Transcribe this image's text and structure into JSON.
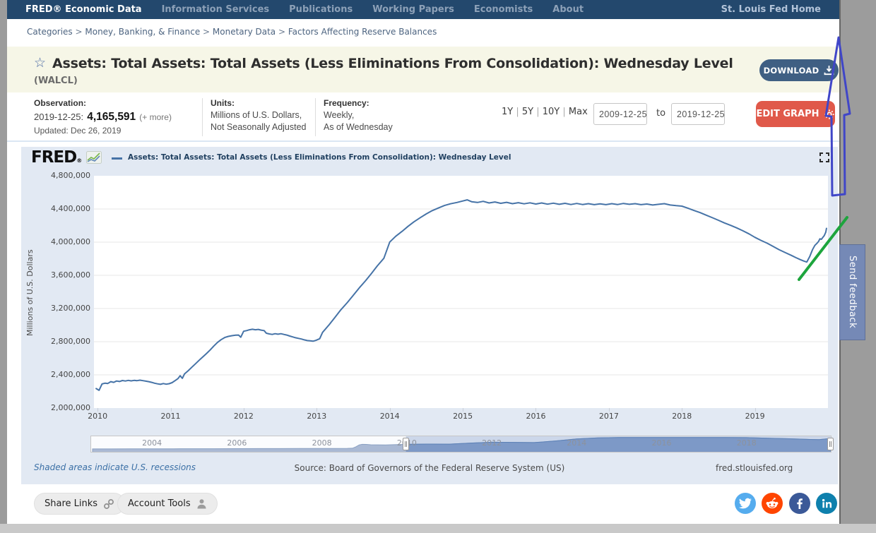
{
  "nav": {
    "brand": "FRED® Economic Data",
    "items": [
      "Information Services",
      "Publications",
      "Working Papers",
      "Economists",
      "About"
    ],
    "right": "St. Louis Fed Home"
  },
  "breadcrumb": {
    "separator": ">",
    "parts": [
      "Categories",
      "Money, Banking, & Finance",
      "Monetary Data",
      "Factors Affecting Reserve Balances"
    ]
  },
  "icons": {
    "favorite_star": "☆"
  },
  "series_header": {
    "title": "Assets: Total Assets: Total Assets (Less Eliminations From Consolidation): Wednesday Level",
    "series_id": "(WALCL)",
    "download_label": "DOWNLOAD"
  },
  "meta": {
    "observation_label": "Observation:",
    "observation_date": "2019-12-25:",
    "observation_value": "4,165,591",
    "more_label": "(+ more)",
    "updated": "Updated: Dec 26, 2019",
    "units_label": "Units:",
    "units_line1": "Millions of U.S. Dollars,",
    "units_line2": "Not Seasonally Adjusted",
    "frequency_label": "Frequency:",
    "frequency_line1": "Weekly,",
    "frequency_line2": "As of Wednesday"
  },
  "range_controls": {
    "presets": [
      "1Y",
      "5Y",
      "10Y",
      "Max"
    ],
    "start_date": "2009-12-25",
    "to_label": "to",
    "end_date": "2019-12-25",
    "edit_graph_label": "EDIT GRAPH"
  },
  "chart": {
    "brand": "FRED",
    "brand_reg": "®",
    "legend": "Assets: Total Assets: Total Assets (Less Eliminations From Consolidation): Wednesday Level"
  },
  "chart_data": {
    "type": "line",
    "title": "Assets: Total Assets: Total Assets (Less Eliminations From Consolidation): Wednesday Level",
    "xlabel": "",
    "ylabel": "Millions of U.S. Dollars",
    "grid": "horizontal",
    "legend_position": "top",
    "xlim": [
      2009.95,
      2020.0
    ],
    "ylim": [
      2000000,
      4800000
    ],
    "y_ticks": [
      2000000,
      2400000,
      2800000,
      3200000,
      3600000,
      4000000,
      4400000,
      4800000
    ],
    "x_ticks": [
      2010,
      2011,
      2012,
      2013,
      2014,
      2015,
      2016,
      2017,
      2018,
      2019
    ],
    "line_color": "#4673a7",
    "last_observation": {
      "date": "2019-12-25",
      "value": 4165591
    },
    "series": [
      {
        "name": "Assets: Total Assets: Total Assets (Less Eliminations From Consolidation): Wednesday Level",
        "points": [
          [
            2009.98,
            2235000
          ],
          [
            2010.02,
            2214000
          ],
          [
            2010.06,
            2290000
          ],
          [
            2010.1,
            2300000
          ],
          [
            2010.14,
            2296000
          ],
          [
            2010.18,
            2318000
          ],
          [
            2010.22,
            2310000
          ],
          [
            2010.26,
            2326000
          ],
          [
            2010.3,
            2320000
          ],
          [
            2010.34,
            2332000
          ],
          [
            2010.38,
            2326000
          ],
          [
            2010.42,
            2334000
          ],
          [
            2010.46,
            2328000
          ],
          [
            2010.5,
            2334000
          ],
          [
            2010.54,
            2330000
          ],
          [
            2010.58,
            2336000
          ],
          [
            2010.62,
            2330000
          ],
          [
            2010.66,
            2324000
          ],
          [
            2010.7,
            2318000
          ],
          [
            2010.74,
            2310000
          ],
          [
            2010.78,
            2300000
          ],
          [
            2010.82,
            2292000
          ],
          [
            2010.86,
            2286000
          ],
          [
            2010.9,
            2295000
          ],
          [
            2010.94,
            2288000
          ],
          [
            2010.98,
            2294000
          ],
          [
            2011.02,
            2306000
          ],
          [
            2011.06,
            2330000
          ],
          [
            2011.1,
            2355000
          ],
          [
            2011.13,
            2390000
          ],
          [
            2011.16,
            2358000
          ],
          [
            2011.19,
            2412000
          ],
          [
            2011.24,
            2450000
          ],
          [
            2011.29,
            2492000
          ],
          [
            2011.34,
            2534000
          ],
          [
            2011.39,
            2576000
          ],
          [
            2011.44,
            2616000
          ],
          [
            2011.49,
            2656000
          ],
          [
            2011.54,
            2700000
          ],
          [
            2011.59,
            2746000
          ],
          [
            2011.64,
            2790000
          ],
          [
            2011.69,
            2824000
          ],
          [
            2011.74,
            2850000
          ],
          [
            2011.79,
            2864000
          ],
          [
            2011.84,
            2872000
          ],
          [
            2011.89,
            2878000
          ],
          [
            2011.93,
            2880000
          ],
          [
            2011.96,
            2854000
          ],
          [
            2012.0,
            2926000
          ],
          [
            2012.04,
            2934000
          ],
          [
            2012.08,
            2944000
          ],
          [
            2012.12,
            2950000
          ],
          [
            2012.16,
            2944000
          ],
          [
            2012.2,
            2948000
          ],
          [
            2012.24,
            2940000
          ],
          [
            2012.28,
            2934000
          ],
          [
            2012.31,
            2902000
          ],
          [
            2012.35,
            2894000
          ],
          [
            2012.39,
            2888000
          ],
          [
            2012.43,
            2896000
          ],
          [
            2012.47,
            2890000
          ],
          [
            2012.51,
            2896000
          ],
          [
            2012.55,
            2888000
          ],
          [
            2012.59,
            2880000
          ],
          [
            2012.63,
            2868000
          ],
          [
            2012.67,
            2858000
          ],
          [
            2012.71,
            2848000
          ],
          [
            2012.75,
            2840000
          ],
          [
            2012.79,
            2832000
          ],
          [
            2012.83,
            2822000
          ],
          [
            2012.87,
            2814000
          ],
          [
            2012.91,
            2810000
          ],
          [
            2012.95,
            2806000
          ],
          [
            2012.99,
            2816000
          ],
          [
            2013.04,
            2836000
          ],
          [
            2013.08,
            2912000
          ],
          [
            2013.17,
            3004000
          ],
          [
            2013.25,
            3094000
          ],
          [
            2013.33,
            3184000
          ],
          [
            2013.42,
            3272000
          ],
          [
            2013.5,
            3358000
          ],
          [
            2013.58,
            3446000
          ],
          [
            2013.67,
            3536000
          ],
          [
            2013.75,
            3624000
          ],
          [
            2013.83,
            3714000
          ],
          [
            2013.92,
            3806000
          ],
          [
            2014.0,
            4002000
          ],
          [
            2014.08,
            4070000
          ],
          [
            2014.17,
            4131000
          ],
          [
            2014.25,
            4190000
          ],
          [
            2014.33,
            4244000
          ],
          [
            2014.42,
            4296000
          ],
          [
            2014.5,
            4340000
          ],
          [
            2014.58,
            4380000
          ],
          [
            2014.67,
            4414000
          ],
          [
            2014.75,
            4442000
          ],
          [
            2014.83,
            4462000
          ],
          [
            2014.92,
            4478000
          ],
          [
            2015.0,
            4496000
          ],
          [
            2015.06,
            4510000
          ],
          [
            2015.12,
            4488000
          ],
          [
            2015.2,
            4478000
          ],
          [
            2015.28,
            4492000
          ],
          [
            2015.36,
            4472000
          ],
          [
            2015.44,
            4484000
          ],
          [
            2015.52,
            4468000
          ],
          [
            2015.6,
            4480000
          ],
          [
            2015.68,
            4464000
          ],
          [
            2015.76,
            4476000
          ],
          [
            2015.84,
            4462000
          ],
          [
            2015.92,
            4474000
          ],
          [
            2016.0,
            4460000
          ],
          [
            2016.08,
            4472000
          ],
          [
            2016.16,
            4458000
          ],
          [
            2016.24,
            4470000
          ],
          [
            2016.32,
            4456000
          ],
          [
            2016.4,
            4468000
          ],
          [
            2016.48,
            4454000
          ],
          [
            2016.56,
            4466000
          ],
          [
            2016.64,
            4454000
          ],
          [
            2016.72,
            4464000
          ],
          [
            2016.8,
            4452000
          ],
          [
            2016.88,
            4462000
          ],
          [
            2016.96,
            4452000
          ],
          [
            2017.04,
            4464000
          ],
          [
            2017.12,
            4454000
          ],
          [
            2017.2,
            4466000
          ],
          [
            2017.28,
            4456000
          ],
          [
            2017.36,
            4464000
          ],
          [
            2017.44,
            4452000
          ],
          [
            2017.52,
            4460000
          ],
          [
            2017.6,
            4448000
          ],
          [
            2017.68,
            4456000
          ],
          [
            2017.76,
            4464000
          ],
          [
            2017.84,
            4448000
          ],
          [
            2017.92,
            4440000
          ],
          [
            2018.0,
            4434000
          ],
          [
            2018.08,
            4410000
          ],
          [
            2018.16,
            4384000
          ],
          [
            2018.25,
            4356000
          ],
          [
            2018.33,
            4326000
          ],
          [
            2018.42,
            4294000
          ],
          [
            2018.5,
            4264000
          ],
          [
            2018.58,
            4232000
          ],
          [
            2018.67,
            4202000
          ],
          [
            2018.75,
            4172000
          ],
          [
            2018.83,
            4140000
          ],
          [
            2018.92,
            4100000
          ],
          [
            2019.0,
            4058000
          ],
          [
            2019.08,
            4022000
          ],
          [
            2019.17,
            3986000
          ],
          [
            2019.25,
            3948000
          ],
          [
            2019.33,
            3910000
          ],
          [
            2019.42,
            3872000
          ],
          [
            2019.5,
            3840000
          ],
          [
            2019.56,
            3814000
          ],
          [
            2019.62,
            3790000
          ],
          [
            2019.67,
            3772000
          ],
          [
            2019.71,
            3760000
          ],
          [
            2019.75,
            3826000
          ],
          [
            2019.79,
            3912000
          ],
          [
            2019.82,
            3960000
          ],
          [
            2019.85,
            3986000
          ],
          [
            2019.87,
            4008000
          ],
          [
            2019.89,
            4040000
          ],
          [
            2019.91,
            4034000
          ],
          [
            2019.93,
            4058000
          ],
          [
            2019.95,
            4080000
          ],
          [
            2019.97,
            4120000
          ],
          [
            2019.98,
            4165591
          ]
        ]
      }
    ],
    "range_slider": {
      "xlim": [
        2002.55,
        2020.0
      ],
      "ymax": 4650000,
      "selection": [
        2009.98,
        2019.98
      ],
      "ticks": [
        2004,
        2006,
        2008,
        2010,
        2012,
        2014,
        2016,
        2018
      ],
      "points": [
        [
          2002.6,
          720000
        ],
        [
          2003.0,
          728000
        ],
        [
          2003.5,
          740000
        ],
        [
          2004.0,
          755000
        ],
        [
          2004.5,
          768000
        ],
        [
          2005.0,
          782000
        ],
        [
          2005.5,
          797000
        ],
        [
          2006.0,
          812000
        ],
        [
          2006.5,
          828000
        ],
        [
          2007.0,
          846000
        ],
        [
          2007.5,
          862000
        ],
        [
          2008.0,
          878000
        ],
        [
          2008.3,
          888000
        ],
        [
          2008.6,
          902000
        ],
        [
          2008.72,
          958000
        ],
        [
          2008.8,
          1420000
        ],
        [
          2008.88,
          2040000
        ],
        [
          2008.95,
          2230000
        ],
        [
          2009.05,
          2210000
        ],
        [
          2009.15,
          2100000
        ],
        [
          2009.3,
          2065000
        ],
        [
          2009.5,
          2025000
        ],
        [
          2009.7,
          2125000
        ],
        [
          2009.85,
          2180000
        ],
        [
          2009.98,
          2235000
        ],
        [
          2010.5,
          2332000
        ],
        [
          2011.0,
          2298000
        ],
        [
          2011.5,
          2656000
        ],
        [
          2012.0,
          2926000
        ],
        [
          2012.5,
          2892000
        ],
        [
          2013.0,
          2820000
        ],
        [
          2013.5,
          3358000
        ],
        [
          2014.0,
          4002000
        ],
        [
          2014.5,
          4340000
        ],
        [
          2015.0,
          4496000
        ],
        [
          2015.5,
          4478000
        ],
        [
          2016.0,
          4460000
        ],
        [
          2016.5,
          4466000
        ],
        [
          2017.0,
          4458000
        ],
        [
          2017.5,
          4460000
        ],
        [
          2018.0,
          4434000
        ],
        [
          2018.5,
          4264000
        ],
        [
          2019.0,
          4058000
        ],
        [
          2019.5,
          3840000
        ],
        [
          2019.71,
          3760000
        ],
        [
          2019.85,
          3986000
        ],
        [
          2019.98,
          4165591
        ]
      ]
    }
  },
  "footer_notes": {
    "recessions": "Shaded areas indicate U.S. recessions",
    "source": "Source: Board of Governors of the Federal Reserve System (US)",
    "site": "fred.stlouisfed.org"
  },
  "actions": {
    "share": "Share Links",
    "account": "Account Tools"
  },
  "feedback": {
    "label": "Send feedback"
  },
  "colors": {
    "nav_bg": "#23486d",
    "band_bg": "#f6f6e7",
    "download_bg": "#3f5f83",
    "edit_bg": "#e0594a",
    "line": "#4673a7",
    "panel_bg": "#e2e9f3",
    "feedback_bg": "#7589b6",
    "annotation_blue": "#4046c8",
    "annotation_green": "#1da53d",
    "twitter": "#55acee",
    "reddit": "#ff4500",
    "facebook": "#3b5998",
    "linkedin": "#0e80ad"
  }
}
